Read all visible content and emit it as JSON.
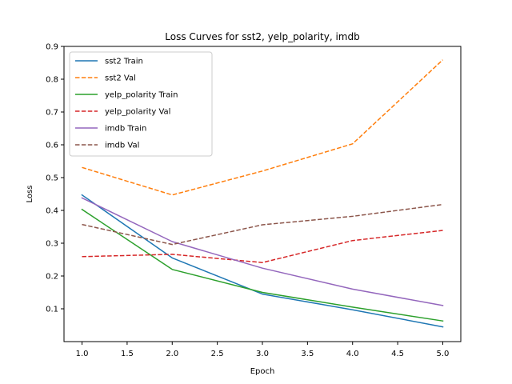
{
  "chart_data": {
    "type": "line",
    "title": "Loss Curves for sst2, yelp_polarity, imdb",
    "xlabel": "Epoch",
    "ylabel": "Loss",
    "x": [
      1,
      2,
      3,
      4,
      5
    ],
    "xlim": [
      0.8,
      5.2
    ],
    "ylim": [
      0.0,
      0.9
    ],
    "xticks": [
      "1.0",
      "1.5",
      "2.0",
      "2.5",
      "3.0",
      "3.5",
      "4.0",
      "4.5",
      "5.0"
    ],
    "yticks": [
      "0.1",
      "0.2",
      "0.3",
      "0.4",
      "0.5",
      "0.6",
      "0.7",
      "0.8",
      "0.9"
    ],
    "grid": false,
    "legend_position": "top-left",
    "series": [
      {
        "name": "sst2 Train",
        "values": [
          0.447,
          0.255,
          0.145,
          0.097,
          0.045
        ],
        "color": "#1f77b4",
        "dashed": false
      },
      {
        "name": "sst2 Val",
        "values": [
          0.531,
          0.447,
          0.52,
          0.603,
          0.859
        ],
        "color": "#ff7f0e",
        "dashed": true
      },
      {
        "name": "yelp_polarity Train",
        "values": [
          0.403,
          0.22,
          0.15,
          0.105,
          0.063
        ],
        "color": "#2ca02c",
        "dashed": false
      },
      {
        "name": "yelp_polarity Val",
        "values": [
          0.259,
          0.266,
          0.241,
          0.308,
          0.339
        ],
        "color": "#d62728",
        "dashed": true
      },
      {
        "name": "imdb Train",
        "values": [
          0.438,
          0.305,
          0.224,
          0.16,
          0.11
        ],
        "color": "#9467bd",
        "dashed": false
      },
      {
        "name": "imdb Val",
        "values": [
          0.357,
          0.296,
          0.356,
          0.382,
          0.418
        ],
        "color": "#8c564b",
        "dashed": true
      }
    ]
  }
}
